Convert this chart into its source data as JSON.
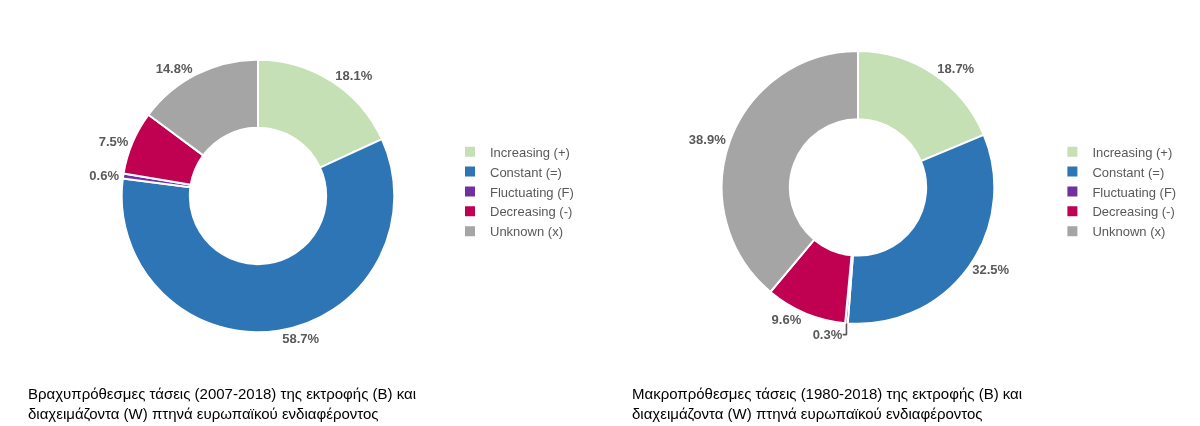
{
  "chart_data": [
    {
      "type": "donut",
      "categories": [
        "Increasing (+)",
        "Constant (=)",
        "Fluctuating (F)",
        "Decreasing (-)",
        "Unknown (x)"
      ],
      "values": [
        18.1,
        58.7,
        0.6,
        7.5,
        14.8
      ],
      "value_labels": [
        "18.1%",
        "58.7%",
        "0.6%",
        "7.5%",
        "14.8%"
      ],
      "colors": [
        "#c5e0b4",
        "#2e75b6",
        "#7030a0",
        "#c00050",
        "#a5a5a5"
      ],
      "legend": "right",
      "annotations": [
        "Βραχυπρόθεσμες τάσεις (2007-2018) της εκτροφής (B) και\nδιαχειμάζοντα (W) πτηνά ευρωπαϊκού ενδιαφέροντος"
      ]
    },
    {
      "type": "donut",
      "categories": [
        "Increasing (+)",
        "Constant (=)",
        "Fluctuating (F)",
        "Decreasing (-)",
        "Unknown (x)"
      ],
      "values": [
        18.7,
        32.5,
        0.3,
        9.6,
        38.9
      ],
      "value_labels": [
        "18.7%",
        "32.5%",
        "0.3%",
        "9.6%",
        "38.9%"
      ],
      "colors": [
        "#c5e0b4",
        "#2e75b6",
        "#7030a0",
        "#c00050",
        "#a5a5a5"
      ],
      "legend": "right",
      "annotations": [
        "Μακροπρόθεσμες τάσεις (1980-2018) της εκτροφής (B) και\nδιαχειμάζοντα (W) πτηνά ευρωπαϊκού ενδιαφέροντος"
      ]
    }
  ]
}
